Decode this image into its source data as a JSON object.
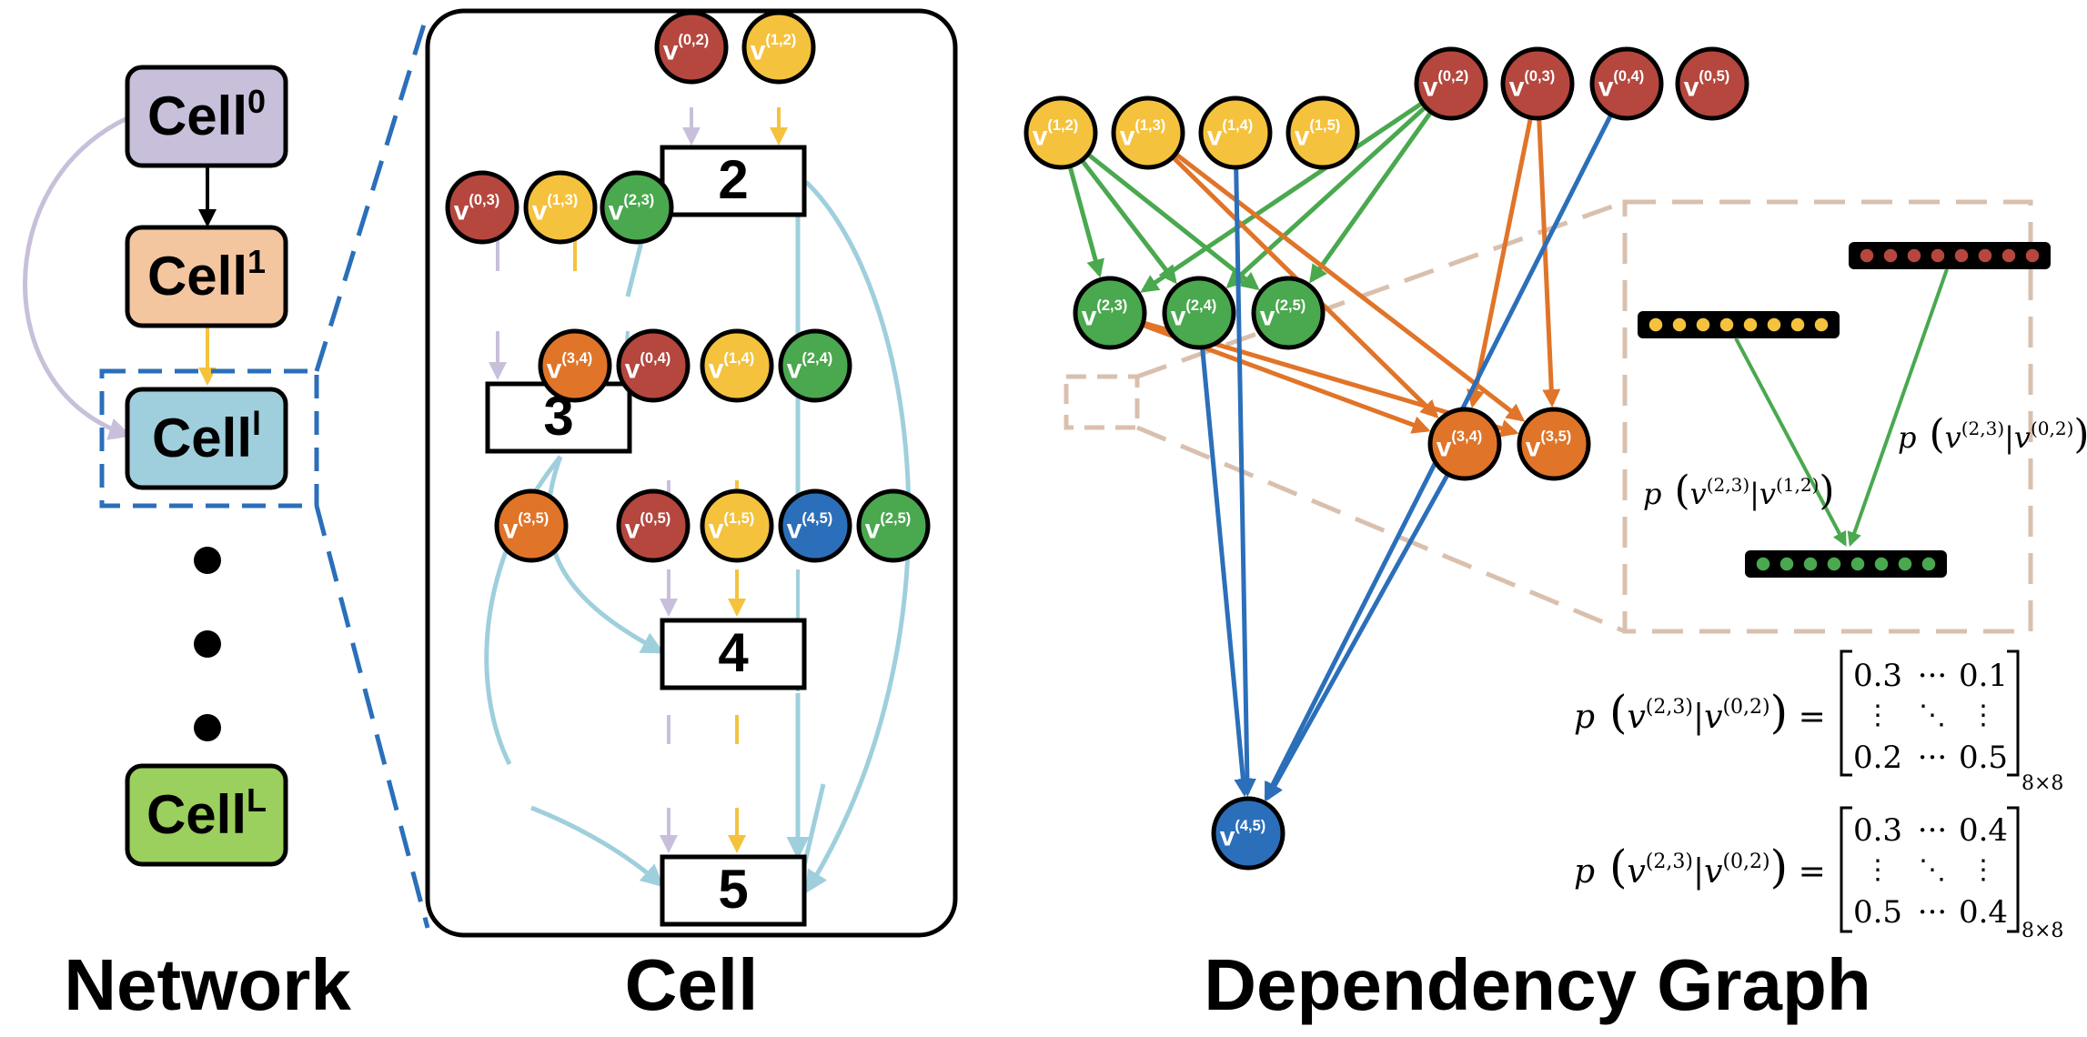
{
  "colors": {
    "red": "#b5473e",
    "yellow": "#f5c23e",
    "green": "#4aa84f",
    "orange": "#e07428",
    "blue": "#2b6fba",
    "lightblue": "#9fcfdc",
    "lavender": "#c8c0da",
    "peach": "#f4c6a0",
    "lime": "#9bcf5e",
    "tan": "#d9c0ae"
  },
  "network": {
    "caption": "Network",
    "cells": [
      {
        "base": "Cell",
        "sup": "0"
      },
      {
        "base": "Cell",
        "sup": "1"
      },
      {
        "base": "Cell",
        "sup": "l"
      },
      {
        "base": "Cell",
        "sup": "L"
      }
    ]
  },
  "cell": {
    "caption": "Cell",
    "ops": [
      "2",
      "3",
      "4",
      "5"
    ],
    "nodes": [
      {
        "id": "c02",
        "sup": "(0,2)",
        "color": "red"
      },
      {
        "id": "c12",
        "sup": "(1,2)",
        "color": "yellow"
      },
      {
        "id": "c03",
        "sup": "(0,3)",
        "color": "red"
      },
      {
        "id": "c13",
        "sup": "(1,3)",
        "color": "yellow"
      },
      {
        "id": "c23",
        "sup": "(2,3)",
        "color": "green"
      },
      {
        "id": "c34",
        "sup": "(3,4)",
        "color": "orange"
      },
      {
        "id": "c04",
        "sup": "(0,4)",
        "color": "red"
      },
      {
        "id": "c14",
        "sup": "(1,4)",
        "color": "yellow"
      },
      {
        "id": "c24",
        "sup": "(2,4)",
        "color": "green"
      },
      {
        "id": "c35",
        "sup": "(3,5)",
        "color": "orange"
      },
      {
        "id": "c05",
        "sup": "(0,5)",
        "color": "red"
      },
      {
        "id": "c15",
        "sup": "(1,5)",
        "color": "yellow"
      },
      {
        "id": "c45",
        "sup": "(4,5)",
        "color": "blue"
      },
      {
        "id": "c25",
        "sup": "(2,5)",
        "color": "green"
      }
    ]
  },
  "graph": {
    "caption": "Dependency Graph",
    "nodes": [
      {
        "id": "g02",
        "sup": "(0,2)",
        "color": "red"
      },
      {
        "id": "g03",
        "sup": "(0,3)",
        "color": "red"
      },
      {
        "id": "g04",
        "sup": "(0,4)",
        "color": "red"
      },
      {
        "id": "g05",
        "sup": "(0,5)",
        "color": "red"
      },
      {
        "id": "g12",
        "sup": "(1,2)",
        "color": "yellow"
      },
      {
        "id": "g13",
        "sup": "(1,3)",
        "color": "yellow"
      },
      {
        "id": "g14",
        "sup": "(1,4)",
        "color": "yellow"
      },
      {
        "id": "g15",
        "sup": "(1,5)",
        "color": "yellow"
      },
      {
        "id": "g23",
        "sup": "(2,3)",
        "color": "green"
      },
      {
        "id": "g24",
        "sup": "(2,4)",
        "color": "green"
      },
      {
        "id": "g25",
        "sup": "(2,5)",
        "color": "green"
      },
      {
        "id": "g34",
        "sup": "(3,4)",
        "color": "orange"
      },
      {
        "id": "g35",
        "sup": "(3,5)",
        "color": "orange"
      },
      {
        "id": "g45",
        "sup": "(4,5)",
        "color": "blue"
      }
    ],
    "inset_labels": [
      {
        "p": "p",
        "num": "v",
        "num_sup": "(2,3)",
        "den": "v",
        "den_sup": "(1,2)"
      },
      {
        "p": "p",
        "num": "v",
        "num_sup": "(2,3)",
        "den": "v",
        "den_sup": "(0,2)"
      }
    ]
  },
  "equations": [
    {
      "lhs_p": "p",
      "lhs_num": "v",
      "lhs_num_sup": "(2,3)",
      "lhs_den": "v",
      "lhs_den_sup": "(0,2)",
      "eq": "=",
      "row1": [
        "0.3",
        "···",
        "0.1"
      ],
      "row2": [
        "⋮",
        "⋱",
        "⋮"
      ],
      "row3": [
        "0.2",
        "···",
        "0.5"
      ],
      "size": "8×8"
    },
    {
      "lhs_p": "p",
      "lhs_num": "v",
      "lhs_num_sup": "(2,3)",
      "lhs_den": "v",
      "lhs_den_sup": "(0,2)",
      "eq": "=",
      "row1": [
        "0.3",
        "···",
        "0.4"
      ],
      "row2": [
        "⋮",
        "⋱",
        "⋮"
      ],
      "row3": [
        "0.5",
        "···",
        "0.4"
      ],
      "size": "8×8"
    }
  ]
}
